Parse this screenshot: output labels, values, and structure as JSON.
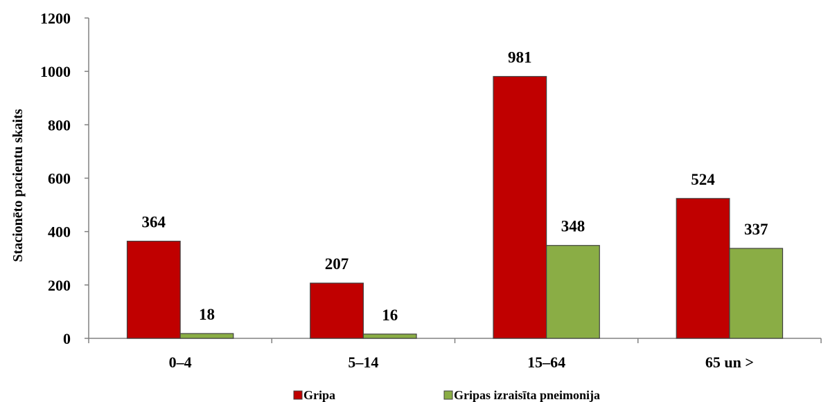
{
  "chart_data": {
    "type": "bar",
    "title": "",
    "xlabel": "",
    "ylabel": "Stacionēto pacientu skaits",
    "ylim": [
      0,
      1200
    ],
    "yticks": [
      "0",
      "200",
      "400",
      "600",
      "800",
      "1000",
      "1200"
    ],
    "categories": [
      "0–4",
      "5–14",
      "15–64",
      "65 un >"
    ],
    "series": [
      {
        "name": "Gripa",
        "values": [
          364,
          207,
          981,
          524
        ],
        "color": "#c00000"
      },
      {
        "name": "Gripas izraisīta pneimonija",
        "values": [
          18,
          16,
          348,
          337
        ],
        "color": "#8aad45"
      }
    ],
    "grid": false,
    "legend_position": "bottom-center",
    "data_labels": true
  }
}
